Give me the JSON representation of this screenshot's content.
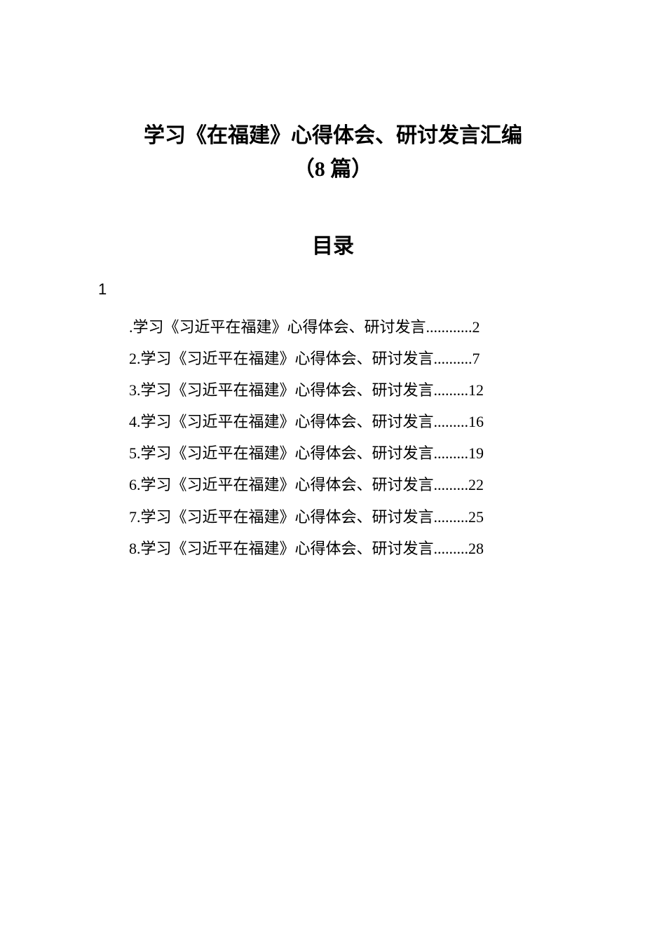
{
  "document": {
    "main_title": "学习《在福建》心得体会、研讨发言汇编",
    "subtitle": "（8 篇）",
    "toc_heading": "目录",
    "stray_number": "1",
    "background_color": "#ffffff",
    "text_color": "#000000",
    "title_fontsize": 30,
    "body_fontsize": 22,
    "toc_items": [
      {
        "prefix": ".",
        "text": "学习《习近平在福建》心得体会、研讨发言",
        "dots": "............",
        "page": "2"
      },
      {
        "prefix": "2.",
        "text": "学习《习近平在福建》心得体会、研讨发言",
        "dots": "..........",
        "page": "7"
      },
      {
        "prefix": "3.",
        "text": "学习《习近平在福建》心得体会、研讨发言",
        "dots": ".........",
        "page": "12"
      },
      {
        "prefix": "4.",
        "text": "学习《习近平在福建》心得体会、研讨发言",
        "dots": ".........",
        "page": "16"
      },
      {
        "prefix": "5.",
        "text": "学习《习近平在福建》心得体会、研讨发言",
        "dots": ".........",
        "page": "19"
      },
      {
        "prefix": "6.",
        "text": "学习《习近平在福建》心得体会、研讨发言",
        "dots": ".........",
        "page": "22"
      },
      {
        "prefix": "7.",
        "text": "学习《习近平在福建》心得体会、研讨发言",
        "dots": ".........",
        "page": "25"
      },
      {
        "prefix": "8.",
        "text": "学习《习近平在福建》心得体会、研讨发言",
        "dots": ".........",
        "page": "28"
      }
    ]
  }
}
